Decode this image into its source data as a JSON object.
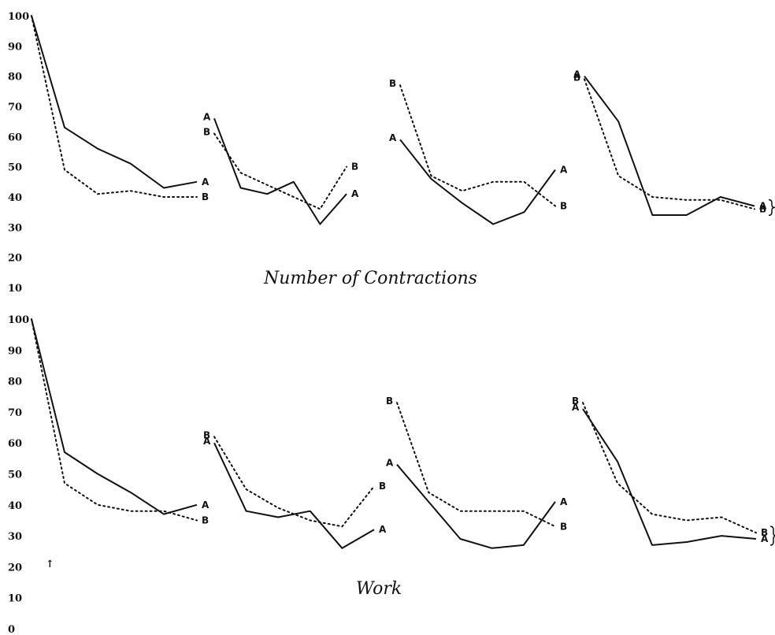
{
  "chart_data": [
    {
      "type": "line",
      "title": "Number of Contractions",
      "yticks": [
        100,
        90,
        80,
        70,
        60,
        50,
        40,
        30,
        20,
        10
      ],
      "ylim": [
        10,
        100
      ],
      "groups": [
        {
          "x": [
            0,
            1,
            2,
            3,
            4,
            5
          ],
          "series": [
            {
              "name": "A",
              "style": "solid",
              "values": [
                100,
                63,
                56,
                51,
                43,
                45
              ]
            },
            {
              "name": "B",
              "style": "dotted",
              "values": [
                100,
                49,
                41,
                42,
                40,
                40
              ]
            }
          ]
        },
        {
          "x": [
            0,
            1,
            2,
            3,
            4,
            5
          ],
          "series": [
            {
              "name": "A",
              "style": "solid",
              "values": [
                66,
                43,
                41,
                45,
                31,
                41
              ]
            },
            {
              "name": "B",
              "style": "dotted",
              "values": [
                61,
                48,
                44,
                40,
                36,
                50
              ]
            }
          ]
        },
        {
          "x": [
            0,
            1,
            2,
            3,
            4,
            5
          ],
          "series": [
            {
              "name": "A",
              "style": "solid",
              "values": [
                59,
                46,
                38,
                31,
                35,
                49
              ]
            },
            {
              "name": "B",
              "style": "dotted",
              "values": [
                77,
                47,
                42,
                45,
                45,
                37
              ]
            }
          ]
        },
        {
          "x": [
            0,
            1,
            2,
            3,
            4,
            5
          ],
          "series": [
            {
              "name": "A",
              "style": "solid",
              "values": [
                80,
                65,
                34,
                34,
                40,
                37
              ]
            },
            {
              "name": "B",
              "style": "dotted",
              "values": [
                79,
                47,
                40,
                39,
                39,
                36
              ]
            }
          ]
        }
      ]
    },
    {
      "type": "line",
      "title": "Work",
      "yticks": [
        100,
        90,
        80,
        70,
        60,
        50,
        40,
        30,
        20,
        10,
        0
      ],
      "ylim": [
        0,
        100
      ],
      "groups": [
        {
          "x": [
            0,
            1,
            2,
            3,
            4,
            5
          ],
          "series": [
            {
              "name": "A",
              "style": "solid",
              "values": [
                100,
                57,
                50,
                44,
                37,
                40
              ]
            },
            {
              "name": "B",
              "style": "dotted",
              "values": [
                100,
                47,
                40,
                38,
                38,
                35
              ]
            }
          ]
        },
        {
          "x": [
            0,
            1,
            2,
            3,
            4,
            5
          ],
          "series": [
            {
              "name": "A",
              "style": "solid",
              "values": [
                60,
                38,
                36,
                38,
                26,
                32
              ]
            },
            {
              "name": "B",
              "style": "dotted",
              "values": [
                62,
                45,
                39,
                35,
                33,
                46
              ]
            }
          ]
        },
        {
          "x": [
            0,
            1,
            2,
            3,
            4,
            5
          ],
          "series": [
            {
              "name": "A",
              "style": "solid",
              "values": [
                53,
                41,
                29,
                26,
                27,
                41
              ]
            },
            {
              "name": "B",
              "style": "dotted",
              "values": [
                73,
                44,
                38,
                38,
                38,
                33
              ]
            }
          ]
        },
        {
          "x": [
            0,
            1,
            2,
            3,
            4,
            5
          ],
          "series": [
            {
              "name": "A",
              "style": "solid",
              "values": [
                71,
                54,
                27,
                28,
                30,
                29
              ]
            },
            {
              "name": "B",
              "style": "dotted",
              "values": [
                73,
                47,
                37,
                35,
                36,
                31
              ]
            }
          ]
        }
      ]
    }
  ],
  "annotations": {
    "arrow": "↑"
  }
}
